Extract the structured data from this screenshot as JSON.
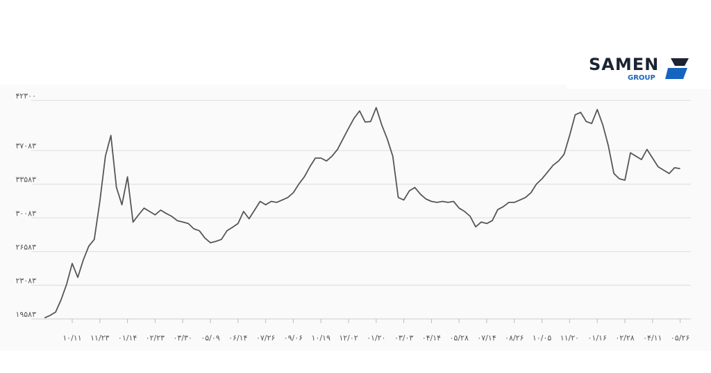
{
  "logo": {
    "name": "SAMEN",
    "sub": "GROUP"
  },
  "chart_data": {
    "type": "line",
    "color": "#555555",
    "grid": true,
    "ylim": [
      19583,
      42500
    ],
    "yticks": [
      {
        "value": 19583,
        "label": "۱۹۵۸۳"
      },
      {
        "value": 23083,
        "label": "۲۳۰۸۳"
      },
      {
        "value": 26583,
        "label": "۲۶۵۸۳"
      },
      {
        "value": 30083,
        "label": "۳۰۰۸۳"
      },
      {
        "value": 33583,
        "label": "۳۳۵۸۳"
      },
      {
        "value": 37083,
        "label": "۳۷۰۸۳"
      },
      {
        "value": 42300,
        "label": "۴۲۳۰۰"
      }
    ],
    "categories": [
      null,
      null,
      null,
      null,
      null,
      "۱۰/۱۱",
      null,
      null,
      null,
      null,
      "۱۱/۲۳",
      null,
      null,
      null,
      null,
      "۰۱/۱۴",
      null,
      null,
      null,
      null,
      "۰۲/۲۳",
      null,
      null,
      null,
      null,
      "۰۳/۳۰",
      null,
      null,
      null,
      null,
      "۰۵/۰۹",
      null,
      null,
      null,
      null,
      "۰۶/۱۴",
      null,
      null,
      null,
      null,
      "۰۷/۲۶",
      null,
      null,
      null,
      null,
      "۰۹/۰۶",
      null,
      null,
      null,
      null,
      "۱۰/۱۹",
      null,
      null,
      null,
      null,
      "۱۲/۰۲",
      null,
      null,
      null,
      null,
      "۰۱/۲۰",
      null,
      null,
      null,
      null,
      "۰۳/۰۳",
      null,
      null,
      null,
      null,
      "۰۴/۱۴",
      null,
      null,
      null,
      null,
      "۰۵/۲۸",
      null,
      null,
      null,
      null,
      "۰۷/۱۴",
      null,
      null,
      null,
      null,
      "۰۸/۲۶",
      null,
      null,
      null,
      null,
      "۱۰/۰۵",
      null,
      null,
      null,
      null,
      "۱۱/۲۰",
      null,
      null,
      null,
      null,
      "۰۱/۱۶",
      null,
      null,
      null,
      null,
      "۰۲/۲۸",
      null,
      null,
      null,
      null,
      "۰۴/۱۱",
      null,
      null,
      null,
      null,
      "۰۵/۲۶"
    ],
    "values": [
      19700,
      19950,
      20300,
      21600,
      23200,
      25350,
      23900,
      25700,
      27150,
      27850,
      31800,
      36500,
      38650,
      33250,
      31450,
      34350,
      29650,
      30400,
      31100,
      30750,
      30400,
      30900,
      30550,
      30250,
      29800,
      29650,
      29500,
      28950,
      28750,
      28000,
      27500,
      27650,
      27850,
      28750,
      29100,
      29500,
      30750,
      30000,
      30900,
      31800,
      31450,
      31800,
      31700,
      31950,
      32200,
      32700,
      33600,
      34350,
      35400,
      36300,
      36300,
      36000,
      36500,
      37200,
      38300,
      39400,
      40450,
      41200,
      40050,
      40100,
      41550,
      39750,
      38300,
      36500,
      32200,
      31950,
      32900,
      33250,
      32550,
      32050,
      31800,
      31700,
      31800,
      31700,
      31800,
      31100,
      30750,
      30250,
      29150,
      29650,
      29500,
      29800,
      30950,
      31250,
      31700,
      31700,
      31950,
      32200,
      32700,
      33600,
      34150,
      34850,
      35550,
      36000,
      36700,
      38650,
      40800,
      41050,
      40100,
      39900,
      41350,
      39750,
      37600,
      34700,
      34150,
      34000,
      36850,
      36500,
      36150,
      37200,
      36300,
      35400,
      35050,
      34700,
      35300,
      35200
    ]
  }
}
